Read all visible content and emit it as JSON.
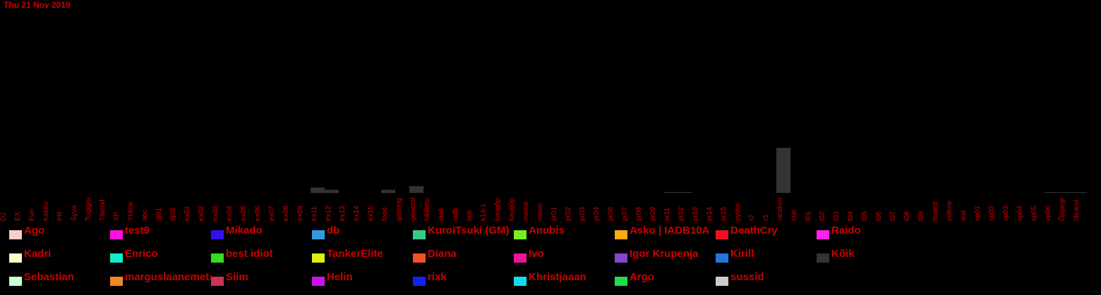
{
  "title": "Thu 21 Nov 2019",
  "colors": {
    "text": "#cc0000",
    "bars": "#333333",
    "background": "#000000"
  },
  "chart_data": {
    "type": "bar",
    "title": "Thu 21 Nov 2019",
    "xlabel": "",
    "ylabel": "",
    "grid": false,
    "ylim": [
      0,
      100
    ],
    "categories": [
      "DJ",
      "EX",
      "Fun",
      "Kokku",
      "PR",
      "Syva",
      "Tugigru",
      "Täiend",
      "XP",
      "Yldine",
      "aoc",
      "dj01",
      "dj02",
      "ex01",
      "ex02",
      "ex03",
      "ex04",
      "ex05",
      "ex06",
      "ex07",
      "ex08",
      "ex09",
      "ex11",
      "ex12",
      "ex13",
      "ex14",
      "ex15",
      "food",
      "gaming",
      "general",
      "hääletu",
      "iaab",
      "iadb",
      "iaib",
      "k14-1",
      "kaugõp",
      "kaugõp",
      "meme",
      "music",
      "pr01",
      "pr02",
      "pr03",
      "pr04",
      "pr06",
      "pr07",
      "pr08",
      "pr09",
      "pr11",
      "pr12",
      "pr13",
      "pr14",
      "pr15",
      "pydoc",
      "r2",
      "r3",
      "random",
      "stat",
      "t01",
      "t02",
      "t03",
      "t04",
      "t05",
      "t06",
      "t07",
      "t08",
      "t09",
      "tested",
      "valkne",
      "wat",
      "xp01",
      "xp02",
      "xp03",
      "xp04",
      "xp05",
      "xp06",
      "Õppegr",
      "üleand"
    ],
    "series": [
      {
        "values": [
          0,
          0,
          0,
          0,
          0,
          0,
          0,
          0,
          0,
          0,
          0,
          0,
          0,
          0,
          0,
          0,
          0,
          0,
          0,
          0,
          0,
          0,
          12,
          7,
          0,
          0,
          0,
          7,
          0,
          15,
          0,
          0,
          0,
          0,
          0,
          0,
          0,
          0,
          0,
          0,
          0,
          0,
          0,
          0,
          0,
          0,
          0,
          2,
          2,
          0,
          0,
          0,
          0,
          0,
          0,
          100,
          0,
          0,
          0,
          0,
          0,
          0,
          0,
          0,
          0,
          0,
          0,
          0,
          0,
          0,
          0,
          0,
          0,
          0,
          1,
          1,
          1
        ]
      }
    ],
    "legend_position": "bottom",
    "legend": [
      {
        "name": "Ago",
        "color": "#ffcccc"
      },
      {
        "name": "test9",
        "color": "#ff11dd"
      },
      {
        "name": "Mikado",
        "color": "#3311ee"
      },
      {
        "name": "db",
        "color": "#3399dd"
      },
      {
        "name": "KuroiTsuki (GM)",
        "color": "#33cc88"
      },
      {
        "name": "Anubis",
        "color": "#77ee22"
      },
      {
        "name": "Asko | IADB10A",
        "color": "#ffaa11"
      },
      {
        "name": "DeathCry",
        "color": "#ee1122"
      },
      {
        "name": "Raido",
        "color": "#ff22ee"
      },
      {
        "name": "Kadri",
        "color": "#ffffcc"
      },
      {
        "name": "Enrico",
        "color": "#11eecc"
      },
      {
        "name": "best idiot",
        "color": "#33dd22"
      },
      {
        "name": "TankerElite",
        "color": "#ddee11"
      },
      {
        "name": "Diana",
        "color": "#ee5522"
      },
      {
        "name": "Ivo",
        "color": "#ee1199"
      },
      {
        "name": "Igor Krupenja",
        "color": "#8844cc"
      },
      {
        "name": "Kirill",
        "color": "#2277dd"
      },
      {
        "name": "Kõik",
        "color": "#333333"
      },
      {
        "name": "Sebastian",
        "color": "#ccffcc"
      },
      {
        "name": "marguslaanemets",
        "color": "#ee8822"
      },
      {
        "name": "Siim",
        "color": "#cc3355"
      },
      {
        "name": "Helin",
        "color": "#cc11ee"
      },
      {
        "name": "rixk",
        "color": "#1122ee"
      },
      {
        "name": "Khristjaaan",
        "color": "#11ddee"
      },
      {
        "name": "Argo",
        "color": "#22dd44"
      },
      {
        "name": "sussid",
        "color": "#cccccc"
      }
    ]
  }
}
